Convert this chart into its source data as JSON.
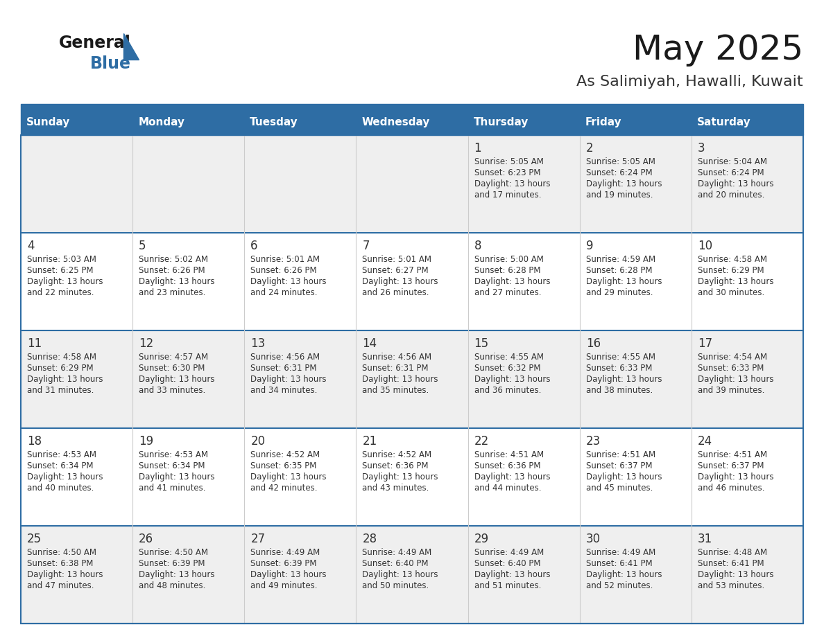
{
  "title": "May 2025",
  "subtitle": "As Salimiyah, Hawalli, Kuwait",
  "days_of_week": [
    "Sunday",
    "Monday",
    "Tuesday",
    "Wednesday",
    "Thursday",
    "Friday",
    "Saturday"
  ],
  "header_bg": "#2E6DA4",
  "header_text": "#FFFFFF",
  "cell_bg_odd": "#EFEFEF",
  "cell_bg_even": "#FFFFFF",
  "cell_text": "#333333",
  "day_number_color": "#333333",
  "separator_color": "#2E6DA4",
  "grid_line_color": "#CCCCCC",
  "title_color": "#1a1a1a",
  "subtitle_color": "#333333",
  "logo_general_color": "#1a1a1a",
  "logo_blue_color": "#2E6DA4",
  "logo_triangle_color": "#2E6DA4",
  "calendar_data": [
    [
      null,
      null,
      null,
      null,
      {
        "day": 1,
        "sunrise": "5:05 AM",
        "sunset": "6:23 PM",
        "daylight": "13 hours\nand 17 minutes."
      },
      {
        "day": 2,
        "sunrise": "5:05 AM",
        "sunset": "6:24 PM",
        "daylight": "13 hours\nand 19 minutes."
      },
      {
        "day": 3,
        "sunrise": "5:04 AM",
        "sunset": "6:24 PM",
        "daylight": "13 hours\nand 20 minutes."
      }
    ],
    [
      {
        "day": 4,
        "sunrise": "5:03 AM",
        "sunset": "6:25 PM",
        "daylight": "13 hours\nand 22 minutes."
      },
      {
        "day": 5,
        "sunrise": "5:02 AM",
        "sunset": "6:26 PM",
        "daylight": "13 hours\nand 23 minutes."
      },
      {
        "day": 6,
        "sunrise": "5:01 AM",
        "sunset": "6:26 PM",
        "daylight": "13 hours\nand 24 minutes."
      },
      {
        "day": 7,
        "sunrise": "5:01 AM",
        "sunset": "6:27 PM",
        "daylight": "13 hours\nand 26 minutes."
      },
      {
        "day": 8,
        "sunrise": "5:00 AM",
        "sunset": "6:28 PM",
        "daylight": "13 hours\nand 27 minutes."
      },
      {
        "day": 9,
        "sunrise": "4:59 AM",
        "sunset": "6:28 PM",
        "daylight": "13 hours\nand 29 minutes."
      },
      {
        "day": 10,
        "sunrise": "4:58 AM",
        "sunset": "6:29 PM",
        "daylight": "13 hours\nand 30 minutes."
      }
    ],
    [
      {
        "day": 11,
        "sunrise": "4:58 AM",
        "sunset": "6:29 PM",
        "daylight": "13 hours\nand 31 minutes."
      },
      {
        "day": 12,
        "sunrise": "4:57 AM",
        "sunset": "6:30 PM",
        "daylight": "13 hours\nand 33 minutes."
      },
      {
        "day": 13,
        "sunrise": "4:56 AM",
        "sunset": "6:31 PM",
        "daylight": "13 hours\nand 34 minutes."
      },
      {
        "day": 14,
        "sunrise": "4:56 AM",
        "sunset": "6:31 PM",
        "daylight": "13 hours\nand 35 minutes."
      },
      {
        "day": 15,
        "sunrise": "4:55 AM",
        "sunset": "6:32 PM",
        "daylight": "13 hours\nand 36 minutes."
      },
      {
        "day": 16,
        "sunrise": "4:55 AM",
        "sunset": "6:33 PM",
        "daylight": "13 hours\nand 38 minutes."
      },
      {
        "day": 17,
        "sunrise": "4:54 AM",
        "sunset": "6:33 PM",
        "daylight": "13 hours\nand 39 minutes."
      }
    ],
    [
      {
        "day": 18,
        "sunrise": "4:53 AM",
        "sunset": "6:34 PM",
        "daylight": "13 hours\nand 40 minutes."
      },
      {
        "day": 19,
        "sunrise": "4:53 AM",
        "sunset": "6:34 PM",
        "daylight": "13 hours\nand 41 minutes."
      },
      {
        "day": 20,
        "sunrise": "4:52 AM",
        "sunset": "6:35 PM",
        "daylight": "13 hours\nand 42 minutes."
      },
      {
        "day": 21,
        "sunrise": "4:52 AM",
        "sunset": "6:36 PM",
        "daylight": "13 hours\nand 43 minutes."
      },
      {
        "day": 22,
        "sunrise": "4:51 AM",
        "sunset": "6:36 PM",
        "daylight": "13 hours\nand 44 minutes."
      },
      {
        "day": 23,
        "sunrise": "4:51 AM",
        "sunset": "6:37 PM",
        "daylight": "13 hours\nand 45 minutes."
      },
      {
        "day": 24,
        "sunrise": "4:51 AM",
        "sunset": "6:37 PM",
        "daylight": "13 hours\nand 46 minutes."
      }
    ],
    [
      {
        "day": 25,
        "sunrise": "4:50 AM",
        "sunset": "6:38 PM",
        "daylight": "13 hours\nand 47 minutes."
      },
      {
        "day": 26,
        "sunrise": "4:50 AM",
        "sunset": "6:39 PM",
        "daylight": "13 hours\nand 48 minutes."
      },
      {
        "day": 27,
        "sunrise": "4:49 AM",
        "sunset": "6:39 PM",
        "daylight": "13 hours\nand 49 minutes."
      },
      {
        "day": 28,
        "sunrise": "4:49 AM",
        "sunset": "6:40 PM",
        "daylight": "13 hours\nand 50 minutes."
      },
      {
        "day": 29,
        "sunrise": "4:49 AM",
        "sunset": "6:40 PM",
        "daylight": "13 hours\nand 51 minutes."
      },
      {
        "day": 30,
        "sunrise": "4:49 AM",
        "sunset": "6:41 PM",
        "daylight": "13 hours\nand 52 minutes."
      },
      {
        "day": 31,
        "sunrise": "4:48 AM",
        "sunset": "6:41 PM",
        "daylight": "13 hours\nand 53 minutes."
      }
    ]
  ]
}
